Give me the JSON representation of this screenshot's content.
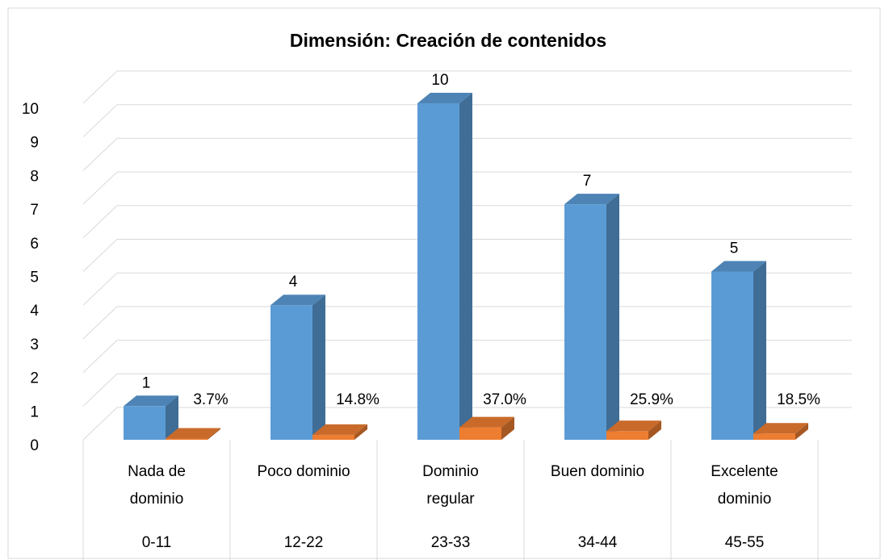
{
  "chart_data": {
    "type": "bar3d",
    "title": "Dimensión: Creación de contenidos",
    "categories": [
      "Nada de dominio",
      "Poco dominio",
      "Dominio regular",
      "Buen dominio",
      "Excelente dominio"
    ],
    "subcategories": [
      "0-11",
      "12-22",
      "23-33",
      "34-44",
      "45-55"
    ],
    "series": [
      {
        "color": "#5b9bd5",
        "values": [
          1,
          4,
          10,
          7,
          5
        ]
      },
      {
        "color": "#ed7d31",
        "values": [
          0.037,
          0.148,
          0.37,
          0.259,
          0.185
        ],
        "value_labels": [
          "3.7%",
          "14.8%",
          "37.0%",
          "25.9%",
          "18.5%"
        ]
      }
    ],
    "ylim": [
      0,
      10
    ],
    "yticks": [
      0,
      1,
      2,
      3,
      4,
      5,
      6,
      7,
      8,
      9,
      10
    ],
    "grid": true
  }
}
